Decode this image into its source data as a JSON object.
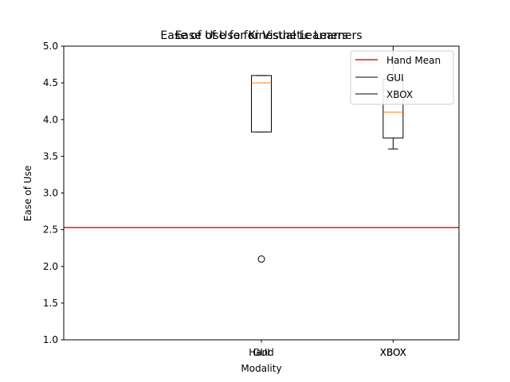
{
  "chart_data": {
    "type": "box",
    "title": "Ease of Use for Kinesthetic Learners",
    "title_overlay": "Ease of Use for Visual Learners",
    "xlabel": "Modality",
    "ylabel": "Ease of Use",
    "ylim": [
      1.0,
      5.0
    ],
    "yticks": [
      "1.0",
      "1.5",
      "2.0",
      "2.5",
      "3.0",
      "3.5",
      "4.0",
      "4.5",
      "5.0"
    ],
    "categories": [
      "Hand",
      "GUI",
      "XBOX"
    ],
    "category_labels_overlaid": [
      {
        "category": "GUI",
        "overlay": "Hand"
      },
      {
        "category": "XBOX",
        "overlay": "XBOX"
      }
    ],
    "boxes": [
      {
        "category": "GUI",
        "whisker_low": 3.83,
        "q1": 3.83,
        "median": 4.5,
        "q3": 4.6,
        "whisker_high": 4.6,
        "outliers": [
          2.1
        ]
      },
      {
        "category": "XBOX",
        "whisker_low": 3.6,
        "q1": 3.75,
        "median": 4.1,
        "q3": 4.55,
        "whisker_high": 5.0,
        "outliers": []
      }
    ],
    "hand_mean": 2.53,
    "legend": {
      "placement": "top-right",
      "entries": [
        {
          "label": "Hand Mean",
          "color": "#e8141c"
        },
        {
          "label": "GUI",
          "color": "#000000"
        },
        {
          "label": "XBOX",
          "color": "#000000"
        }
      ]
    },
    "grid": false,
    "colors": {
      "median": "#ff7f0e",
      "mean_line": "#e8141c",
      "box": "#000000"
    }
  }
}
